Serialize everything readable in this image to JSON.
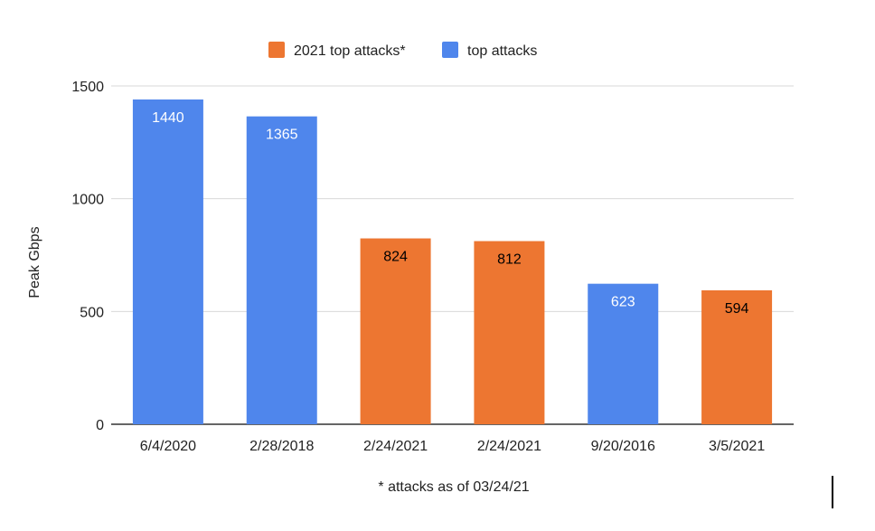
{
  "chart_data": {
    "type": "bar",
    "categories": [
      "6/4/2020",
      "2/28/2018",
      "2/24/2021",
      "2/24/2021",
      "9/20/2016",
      "3/5/2021"
    ],
    "values": [
      1440,
      1365,
      824,
      812,
      623,
      594
    ],
    "series_index": [
      1,
      1,
      0,
      0,
      1,
      0
    ],
    "series": [
      {
        "name": "2021 top attacks*",
        "color": "#ed7631",
        "label_color": "#000000"
      },
      {
        "name": "top attacks",
        "color": "#4f86ec",
        "label_color": "#ffffff"
      }
    ],
    "title": "",
    "xlabel": "",
    "ylabel": "Peak Gbps",
    "ylim": [
      0,
      1500
    ],
    "yticks": [
      0,
      500,
      1000,
      1500
    ],
    "grid": true,
    "legend_position": "top",
    "note": "* attacks as of 03/24/21"
  }
}
